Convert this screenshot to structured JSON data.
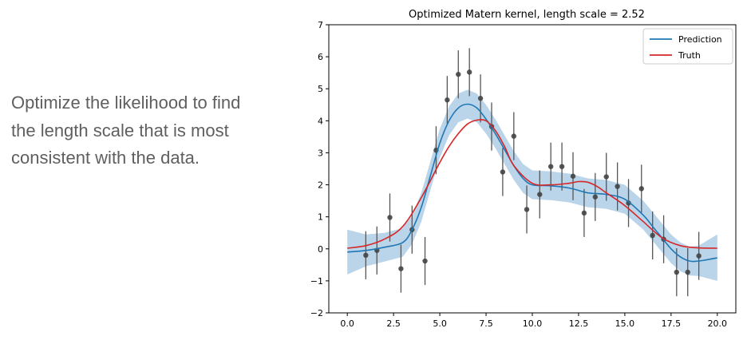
{
  "caption": {
    "lines": [
      "Optimize the likelihood to find",
      "the length scale that is most",
      "consistent with the data."
    ]
  },
  "colors": {
    "prediction": "#1f77b4",
    "band": "#aecde6",
    "truth": "#d62728",
    "points": "#444444",
    "errorbars": "#555555"
  },
  "chart_data": {
    "type": "line",
    "title": "Optimized Matern kernel, length scale = 2.52",
    "xlabel": "",
    "ylabel": "",
    "xlim": [
      -1,
      21
    ],
    "ylim": [
      -2,
      7
    ],
    "xticks": [
      0.0,
      2.5,
      5.0,
      7.5,
      10.0,
      12.5,
      15.0,
      17.5,
      20.0
    ],
    "xtick_labels": [
      "0.0",
      "2.5",
      "5.0",
      "7.5",
      "10.0",
      "12.5",
      "15.0",
      "17.5",
      "20.0"
    ],
    "yticks": [
      -2,
      -1,
      0,
      1,
      2,
      3,
      4,
      5,
      6,
      7
    ],
    "ytick_labels": [
      "−2",
      "−1",
      "0",
      "1",
      "2",
      "3",
      "4",
      "5",
      "6",
      "7"
    ],
    "grid": false,
    "legend_position": "top-right",
    "series": [
      {
        "name": "Prediction",
        "x": [
          0,
          1,
          2,
          3,
          3.5,
          4,
          4.5,
          5,
          5.5,
          6,
          6.5,
          7,
          7.5,
          8,
          8.5,
          9,
          9.5,
          10,
          11,
          12,
          13,
          14,
          15,
          16,
          16.5,
          17,
          17.5,
          18,
          18.5,
          19,
          20
        ],
        "y": [
          -0.1,
          -0.05,
          0.05,
          0.2,
          0.6,
          1.3,
          2.3,
          3.3,
          4.0,
          4.4,
          4.52,
          4.4,
          4.05,
          3.6,
          3.1,
          2.6,
          2.2,
          2.0,
          1.97,
          1.9,
          1.75,
          1.7,
          1.55,
          1.05,
          0.7,
          0.35,
          0.0,
          -0.25,
          -0.38,
          -0.38,
          -0.28
        ]
      },
      {
        "name": "Truth",
        "x": [
          0,
          1,
          2,
          3,
          4,
          5,
          5.5,
          6,
          6.5,
          7,
          7.5,
          8,
          8.5,
          9,
          10,
          11,
          12,
          12.5,
          13,
          13.5,
          14,
          15,
          16,
          17,
          18,
          19,
          20
        ],
        "y": [
          0.02,
          0.1,
          0.3,
          0.7,
          1.6,
          2.7,
          3.2,
          3.6,
          3.9,
          4.02,
          4.0,
          3.7,
          3.2,
          2.6,
          2.05,
          2.0,
          2.05,
          2.1,
          2.08,
          1.95,
          1.75,
          1.35,
          0.85,
          0.35,
          0.1,
          0.03,
          0.02
        ]
      }
    ],
    "band": {
      "x": [
        0,
        1,
        2,
        3,
        3.5,
        4,
        4.5,
        5,
        5.5,
        6,
        6.5,
        7,
        7.5,
        8,
        8.5,
        9,
        9.5,
        10,
        11,
        12,
        13,
        14,
        15,
        16,
        16.5,
        17,
        17.5,
        18,
        18.5,
        19,
        20
      ],
      "lower": [
        -0.8,
        -0.55,
        -0.4,
        -0.25,
        0.15,
        0.85,
        1.85,
        2.85,
        3.55,
        3.95,
        4.07,
        3.95,
        3.6,
        3.15,
        2.65,
        2.15,
        1.75,
        1.55,
        1.52,
        1.45,
        1.3,
        1.25,
        1.1,
        0.6,
        0.25,
        -0.1,
        -0.45,
        -0.7,
        -0.83,
        -0.85,
        -1.0
      ],
      "upper": [
        0.6,
        0.45,
        0.5,
        0.65,
        1.05,
        1.75,
        2.75,
        3.75,
        4.45,
        4.85,
        4.97,
        4.85,
        4.5,
        4.05,
        3.55,
        3.05,
        2.65,
        2.45,
        2.42,
        2.35,
        2.2,
        2.15,
        2.0,
        1.5,
        1.15,
        0.8,
        0.45,
        0.2,
        0.07,
        0.1,
        0.45
      ]
    },
    "observations": [
      {
        "x": 1.0,
        "y": -0.2,
        "yerr": 0.75
      },
      {
        "x": 1.6,
        "y": -0.05,
        "yerr": 0.75
      },
      {
        "x": 2.3,
        "y": 0.98,
        "yerr": 0.75
      },
      {
        "x": 2.9,
        "y": -0.62,
        "yerr": 0.75
      },
      {
        "x": 3.5,
        "y": 0.6,
        "yerr": 0.75
      },
      {
        "x": 4.2,
        "y": -0.38,
        "yerr": 0.75
      },
      {
        "x": 4.8,
        "y": 3.08,
        "yerr": 0.75
      },
      {
        "x": 5.4,
        "y": 4.65,
        "yerr": 0.75
      },
      {
        "x": 6.0,
        "y": 5.45,
        "yerr": 0.75
      },
      {
        "x": 6.6,
        "y": 5.52,
        "yerr": 0.75
      },
      {
        "x": 7.2,
        "y": 4.7,
        "yerr": 0.75
      },
      {
        "x": 7.8,
        "y": 3.82,
        "yerr": 0.75
      },
      {
        "x": 8.4,
        "y": 2.4,
        "yerr": 0.75
      },
      {
        "x": 9.0,
        "y": 3.52,
        "yerr": 0.75
      },
      {
        "x": 9.7,
        "y": 1.23,
        "yerr": 0.75
      },
      {
        "x": 10.4,
        "y": 1.7,
        "yerr": 0.75
      },
      {
        "x": 11.0,
        "y": 2.57,
        "yerr": 0.75
      },
      {
        "x": 11.6,
        "y": 2.57,
        "yerr": 0.75
      },
      {
        "x": 12.2,
        "y": 2.27,
        "yerr": 0.75
      },
      {
        "x": 12.8,
        "y": 1.12,
        "yerr": 0.75
      },
      {
        "x": 13.4,
        "y": 1.62,
        "yerr": 0.75
      },
      {
        "x": 14.0,
        "y": 2.25,
        "yerr": 0.75
      },
      {
        "x": 14.6,
        "y": 1.95,
        "yerr": 0.75
      },
      {
        "x": 15.2,
        "y": 1.43,
        "yerr": 0.75
      },
      {
        "x": 15.9,
        "y": 1.88,
        "yerr": 0.75
      },
      {
        "x": 16.5,
        "y": 0.42,
        "yerr": 0.75
      },
      {
        "x": 17.1,
        "y": 0.3,
        "yerr": 0.75
      },
      {
        "x": 17.8,
        "y": -0.73,
        "yerr": 0.75
      },
      {
        "x": 18.4,
        "y": -0.73,
        "yerr": 0.75
      },
      {
        "x": 19.0,
        "y": -0.22,
        "yerr": 0.75
      }
    ]
  }
}
